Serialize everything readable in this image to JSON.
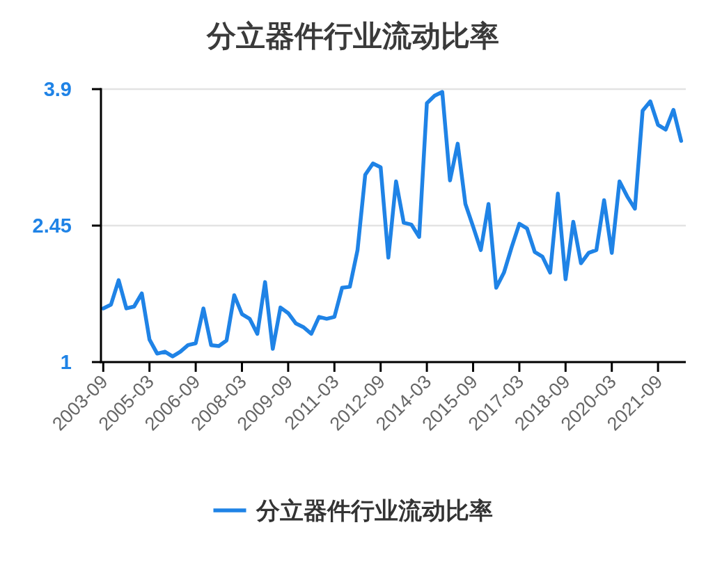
{
  "chart_data": {
    "type": "line",
    "title": "分立器件行业流动比率",
    "categories": [
      "2003-09",
      null,
      null,
      null,
      null,
      null,
      "2005-03",
      null,
      null,
      null,
      null,
      null,
      "2006-09",
      null,
      null,
      null,
      null,
      null,
      "2008-03",
      null,
      null,
      null,
      null,
      null,
      "2009-09",
      null,
      null,
      null,
      null,
      null,
      "2011-03",
      null,
      null,
      null,
      null,
      null,
      "2012-09",
      null,
      null,
      null,
      null,
      null,
      "2014-03",
      null,
      null,
      null,
      null,
      null,
      "2015-09",
      null,
      null,
      null,
      null,
      null,
      "2017-03",
      null,
      null,
      null,
      null,
      null,
      "2018-09",
      null,
      null,
      null,
      null,
      null,
      "2020-03",
      null,
      null,
      null,
      null,
      null,
      "2021-09",
      null,
      null,
      null
    ],
    "series": [
      {
        "name": "分立器件行业流动比率",
        "color": "#1f83e6",
        "values": [
          1.57,
          1.61,
          1.87,
          1.57,
          1.59,
          1.73,
          1.24,
          1.09,
          1.11,
          1.06,
          1.11,
          1.18,
          1.2,
          1.57,
          1.18,
          1.17,
          1.23,
          1.71,
          1.51,
          1.46,
          1.3,
          1.85,
          1.14,
          1.58,
          1.52,
          1.41,
          1.37,
          1.3,
          1.48,
          1.46,
          1.48,
          1.79,
          1.8,
          2.19,
          2.99,
          3.11,
          3.07,
          2.11,
          2.92,
          2.48,
          2.46,
          2.33,
          3.75,
          3.83,
          3.87,
          2.93,
          3.32,
          2.68,
          2.44,
          2.19,
          2.68,
          1.79,
          1.95,
          2.22,
          2.47,
          2.42,
          2.17,
          2.12,
          1.95,
          2.79,
          1.88,
          2.49,
          2.05,
          2.16,
          2.19,
          2.72,
          2.16,
          2.92,
          2.76,
          2.63,
          3.67,
          3.77,
          3.52,
          3.47,
          3.68,
          3.35
        ]
      }
    ],
    "ylim": [
      1,
      3.9
    ],
    "yticks": [
      1,
      2.45,
      3.9
    ],
    "grid": "y",
    "legend": "bottom"
  }
}
